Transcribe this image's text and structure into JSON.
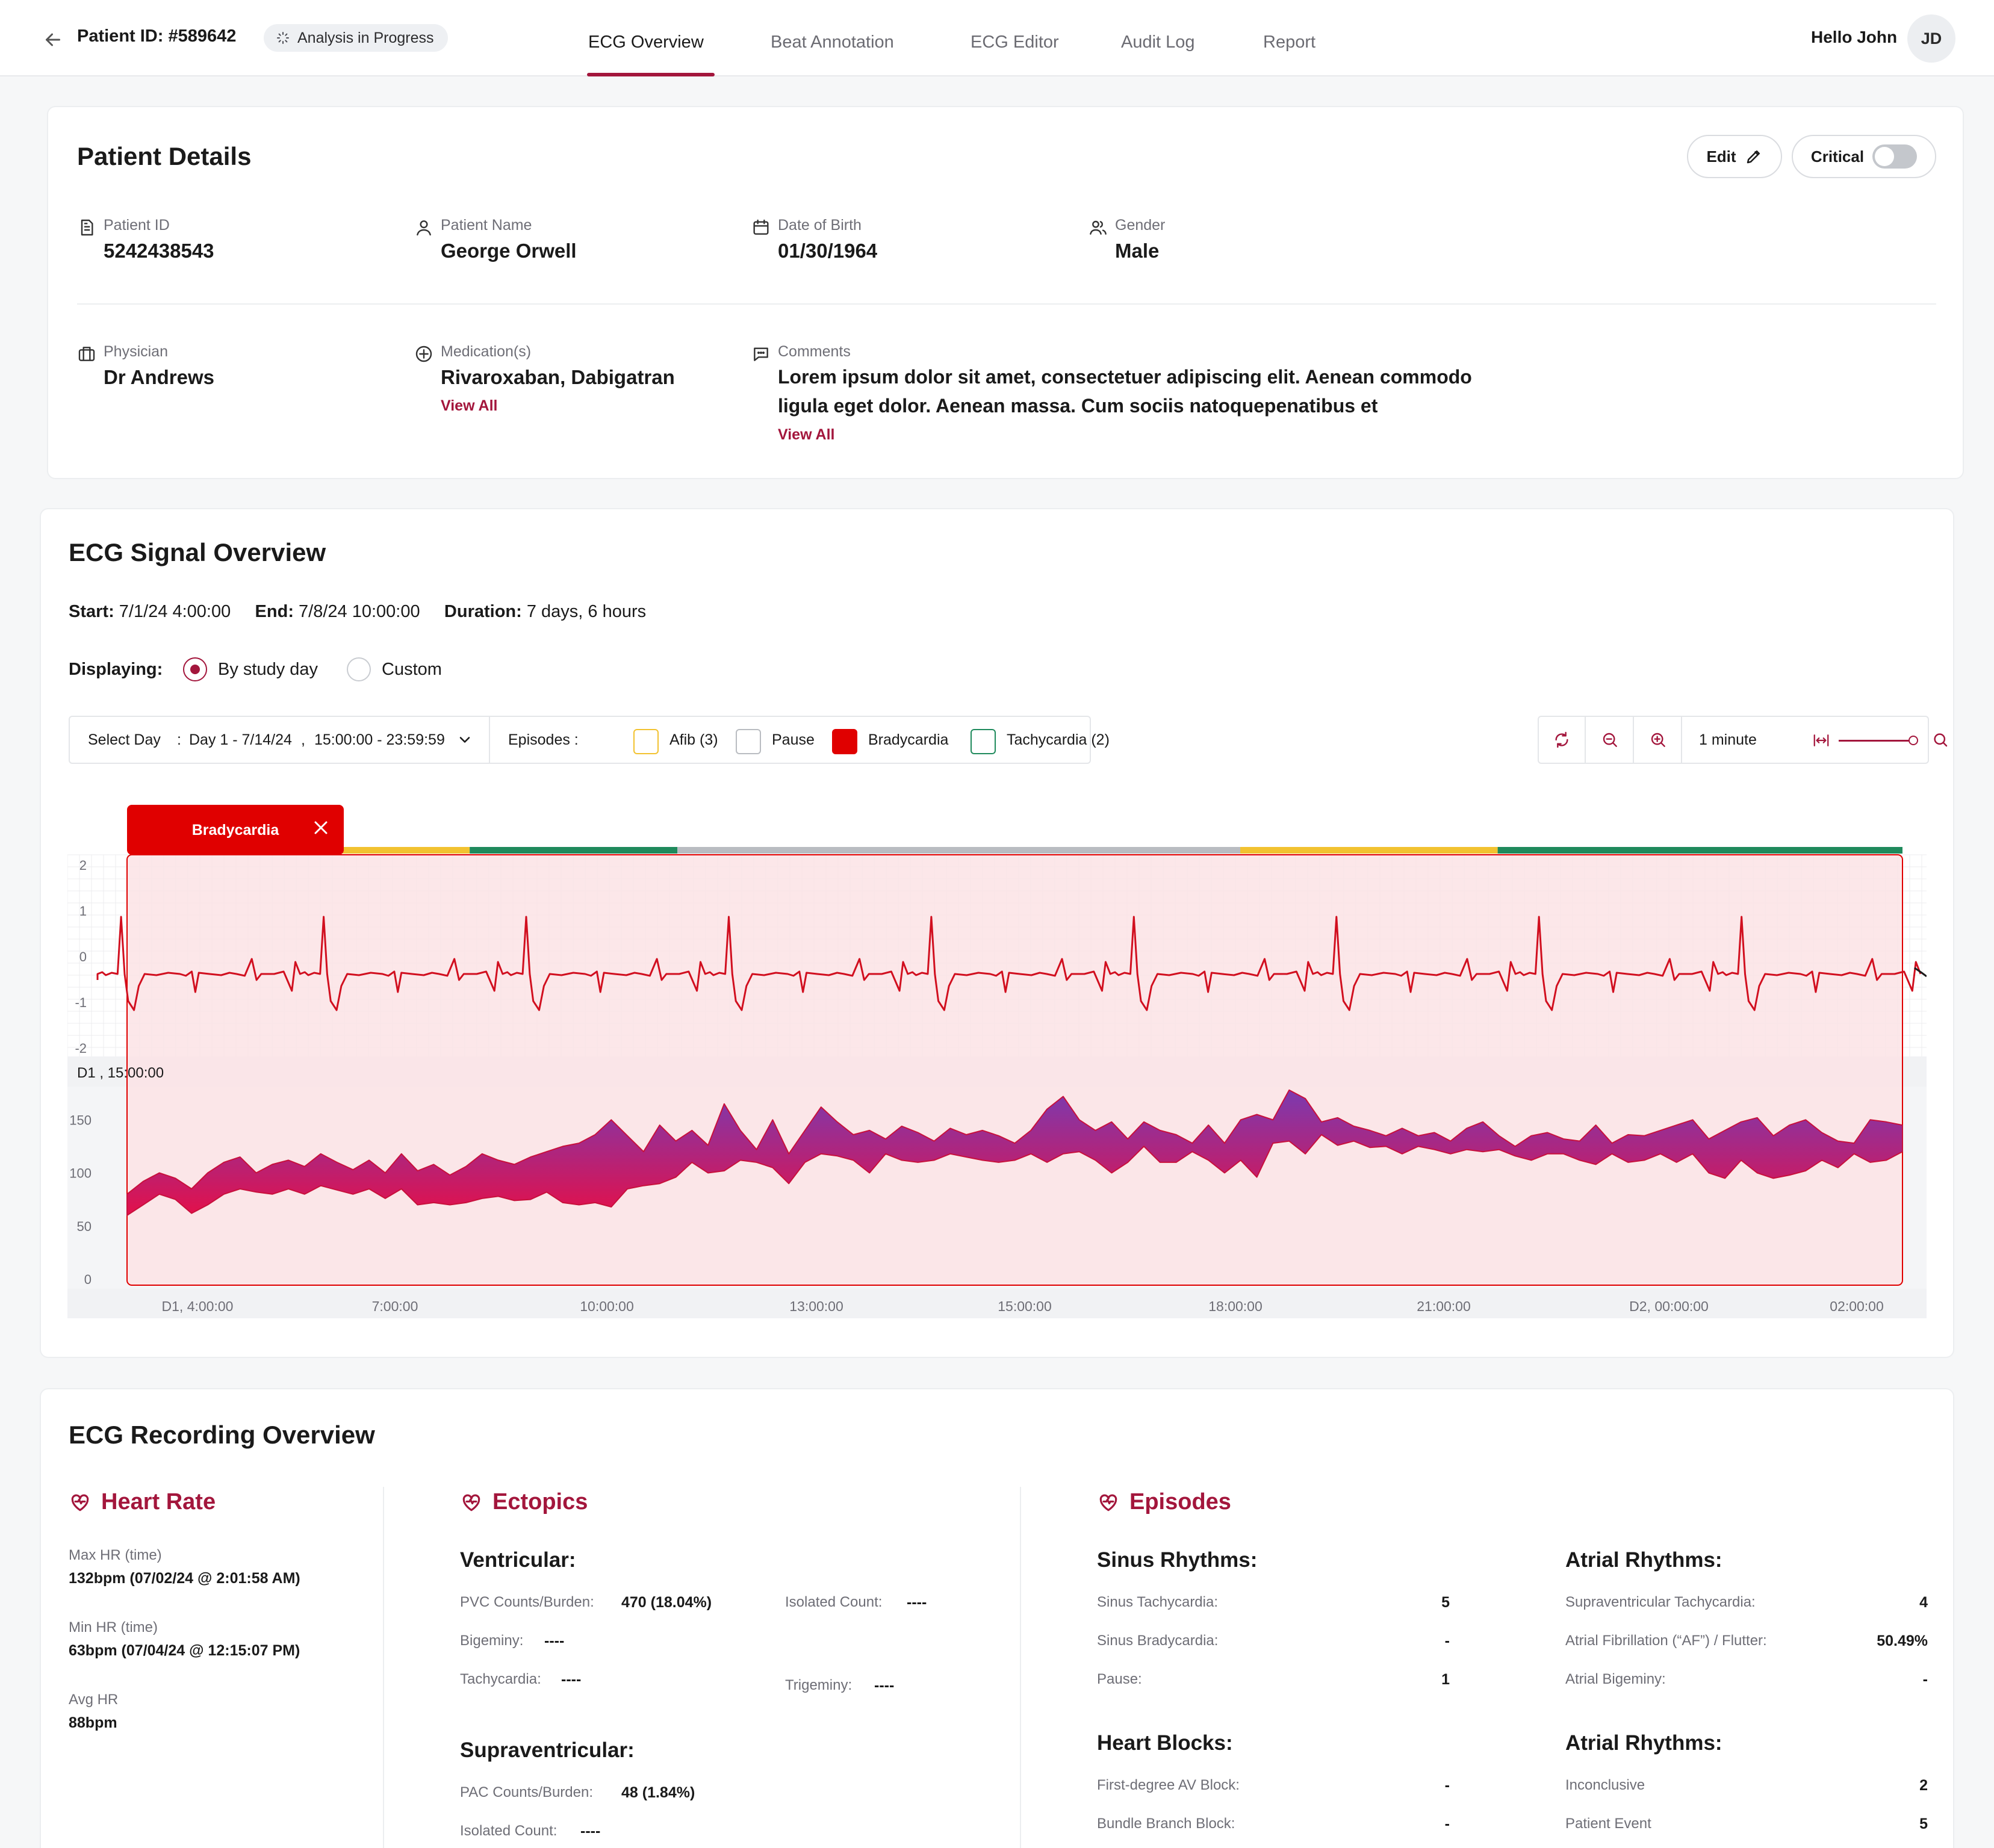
{
  "header": {
    "patient_id_title": "Patient ID: #589642",
    "status_badge": "Analysis in Progress",
    "tabs": [
      {
        "label": "ECG Overview",
        "active": true
      },
      {
        "label": "Beat Annotation",
        "active": false
      },
      {
        "label": "ECG Editor",
        "active": false
      },
      {
        "label": "Audit Log",
        "active": false
      },
      {
        "label": "Report",
        "active": false
      }
    ],
    "greeting": "Hello John",
    "avatar_initials": "JD"
  },
  "patient_details": {
    "title": "Patient Details",
    "edit_label": "Edit",
    "critical_label": "Critical",
    "critical_on": false,
    "fields": {
      "patient_id": {
        "label": "Patient ID",
        "value": "5242438543",
        "icon": "document-icon"
      },
      "patient_name": {
        "label": "Patient Name",
        "value": "George Orwell",
        "icon": "user-icon"
      },
      "dob": {
        "label": "Date of Birth",
        "value": "01/30/1964",
        "icon": "calendar-icon"
      },
      "gender": {
        "label": "Gender",
        "value": "Male",
        "icon": "users-icon"
      },
      "physician": {
        "label": "Physician",
        "value": "Dr Andrews",
        "icon": "briefcase-icon"
      },
      "medications": {
        "label": "Medication(s)",
        "value": "Rivaroxaban, Dabigatran",
        "link": "View All",
        "icon": "medical-icon"
      },
      "comments": {
        "label": "Comments",
        "line1": "Lorem ipsum dolor sit amet, consectetuer adipiscing elit. Aenean commodo",
        "line2": "ligula eget dolor. Aenean massa. Cum sociis natoquepenatibus et",
        "link": "View All",
        "icon": "comment-icon"
      }
    }
  },
  "signal_overview": {
    "title": "ECG Signal Overview",
    "start_label": "Start:",
    "start_value": "7/1/24 4:00:00",
    "end_label": "End:",
    "end_value": "7/8/24 10:00:00",
    "duration_label": "Duration:",
    "duration_value": "7 days, 6 hours",
    "displaying_label": "Displaying:",
    "display_options": [
      {
        "label": "By study day",
        "selected": true
      },
      {
        "label": "Custom",
        "selected": false
      }
    ],
    "select_day_label": "Select Day",
    "select_day_colon": ":",
    "day_value": "Day 1 - 7/14/24",
    "comma": ",",
    "time_range": "15:00:00 - 23:59:59",
    "episodes_label": "Episodes :",
    "episodes": [
      {
        "label": "Afib (3)",
        "color": "#f2c230",
        "filled": false
      },
      {
        "label": "Pause",
        "color": "#b9bcc1",
        "filled": false
      },
      {
        "label": "Bradycardia",
        "color": "#e00000",
        "filled": true
      },
      {
        "label": "Tachycardia (2)",
        "color": "#1f8a5c",
        "filled": false
      }
    ],
    "zoom_window_label": "1 minute",
    "colors": {
      "accent": "#a3163c",
      "ecg_trace": "#d10f1f",
      "highlight_fill": "#fbe3e5",
      "afib": "#f2c230",
      "pause": "#b9bcc1",
      "tachy": "#1f8a5c",
      "brady": "#e00000"
    }
  },
  "chart_data": [
    {
      "type": "line",
      "series": [
        {
          "name": "",
          "values": []
        }
      ],
      "ylim": [
        -2,
        2
      ],
      "yticks": [
        "2",
        "1",
        "0",
        "-1",
        "-2"
      ],
      "strip_label": "D1 , 15:00:00",
      "active_episode": "Bradycardia",
      "episode_bar": [
        {
          "episode": "Bradycardia",
          "from": 0.0,
          "to": 0.12
        },
        {
          "episode": "Afib",
          "from": 0.12,
          "to": 0.193
        },
        {
          "episode": "Tachycardia",
          "from": 0.193,
          "to": 0.31
        },
        {
          "episode": "Pause",
          "from": 0.31,
          "to": 0.627
        },
        {
          "episode": "Afib",
          "from": 0.627,
          "to": 0.772
        },
        {
          "episode": "Tachycardia",
          "from": 0.772,
          "to": 1.0
        }
      ],
      "beats": 9
    },
    {
      "type": "area",
      "ylim": [
        0,
        170
      ],
      "yticks": [
        "150",
        "100",
        "50",
        "0"
      ],
      "xticks": [
        "D1, 4:00:00",
        "7:00:00",
        "10:00:00",
        "13:00:00",
        "15:00:00",
        "18:00:00",
        "21:00:00",
        "D2, 00:00:00",
        "02:00:00"
      ],
      "series": [
        {
          "name": "",
          "values": [
            [
              80,
              60
            ],
            [
              92,
              70
            ],
            [
              100,
              80
            ],
            [
              95,
              75
            ],
            [
              85,
              62
            ],
            [
              100,
              70
            ],
            [
              110,
              80
            ],
            [
              115,
              85
            ],
            [
              100,
              82
            ],
            [
              108,
              80
            ],
            [
              112,
              85
            ],
            [
              106,
              80
            ],
            [
              118,
              88
            ],
            [
              110,
              84
            ],
            [
              103,
              80
            ],
            [
              112,
              85
            ],
            [
              100,
              76
            ],
            [
              118,
              85
            ],
            [
              102,
              70
            ],
            [
              108,
              72
            ],
            [
              98,
              70
            ],
            [
              106,
              72
            ],
            [
              118,
              76
            ],
            [
              112,
              78
            ],
            [
              108,
              74
            ],
            [
              115,
              75
            ],
            [
              120,
              82
            ],
            [
              125,
              72
            ],
            [
              128,
              70
            ],
            [
              136,
              72
            ],
            [
              150,
              68
            ],
            [
              135,
              85
            ],
            [
              120,
              88
            ],
            [
              145,
              90
            ],
            [
              130,
              96
            ],
            [
              140,
              110
            ],
            [
              126,
              100
            ],
            [
              165,
              102
            ],
            [
              140,
              112
            ],
            [
              122,
              110
            ],
            [
              150,
              105
            ],
            [
              118,
              90
            ],
            [
              140,
              110
            ],
            [
              162,
              118
            ],
            [
              148,
              116
            ],
            [
              136,
              112
            ],
            [
              140,
              100
            ],
            [
              132,
              118
            ],
            [
              144,
              112
            ],
            [
              138,
              110
            ],
            [
              130,
              112
            ],
            [
              142,
              118
            ],
            [
              136,
              115
            ],
            [
              140,
              112
            ],
            [
              135,
              110
            ],
            [
              128,
              112
            ],
            [
              140,
              118
            ],
            [
              160,
              110
            ],
            [
              172,
              118
            ],
            [
              150,
              120
            ],
            [
              140,
              112
            ],
            [
              148,
              100
            ],
            [
              132,
              110
            ],
            [
              148,
              125
            ],
            [
              140,
              110
            ],
            [
              136,
              110
            ],
            [
              128,
              120
            ],
            [
              145,
              112
            ],
            [
              128,
              100
            ],
            [
              150,
              112
            ],
            [
              155,
              96
            ],
            [
              150,
              128
            ],
            [
              178,
              130
            ],
            [
              170,
              118
            ],
            [
              148,
              136
            ],
            [
              152,
              126
            ],
            [
              144,
              130
            ],
            [
              140,
              124
            ],
            [
              135,
              125
            ],
            [
              142,
              118
            ],
            [
              135,
              125
            ],
            [
              138,
              122
            ],
            [
              130,
              118
            ],
            [
              142,
              122
            ],
            [
              148,
              120
            ],
            [
              135,
              122
            ],
            [
              125,
              116
            ],
            [
              135,
              112
            ],
            [
              138,
              118
            ],
            [
              132,
              118
            ],
            [
              130,
              112
            ],
            [
              145,
              108
            ],
            [
              128,
              118
            ],
            [
              136,
              110
            ],
            [
              135,
              112
            ],
            [
              140,
              118
            ],
            [
              145,
              110
            ],
            [
              150,
              118
            ],
            [
              132,
              100
            ],
            [
              140,
              95
            ],
            [
              148,
              112
            ],
            [
              152,
              100
            ],
            [
              135,
              95
            ],
            [
              145,
              98
            ],
            [
              150,
              102
            ],
            [
              138,
              112
            ],
            [
              130,
              105
            ],
            [
              128,
              118
            ],
            [
              150,
              110
            ],
            [
              148,
              112
            ],
            [
              145,
              120
            ]
          ]
        }
      ]
    }
  ],
  "recording_overview": {
    "title": "ECG Recording Overview",
    "heart_rate": {
      "title": "Heart Rate",
      "items": [
        {
          "label": "Max HR (time)",
          "value": "132bpm (07/02/24 @ 2:01:58 AM)"
        },
        {
          "label": "Min HR (time)",
          "value": "63bpm (07/04/24 @ 12:15:07 PM)"
        },
        {
          "label": "Avg HR",
          "value": "88bpm"
        }
      ]
    },
    "ectopics": {
      "title": "Ectopics",
      "ventricular_title": "Ventricular:",
      "pvc_label": "PVC Counts/Burden:",
      "pvc_value": "470 (18.04%)",
      "isolated_label": "Isolated Count:",
      "isolated_value": "----",
      "bigeminy_label": "Bigeminy:",
      "bigeminy_value": "----",
      "tachycardia_label": "Tachycardia:",
      "tachycardia_value": "----",
      "trigeminy_label": "Trigeminy:",
      "trigeminy_value": "----",
      "supraventricular_title": "Supraventricular:",
      "pac_label": "PAC Counts/Burden:",
      "pac_value": "48 (1.84%)",
      "sv_isolated_label": "Isolated Count:",
      "sv_isolated_value": "----"
    },
    "episodes": {
      "title": "Episodes",
      "sinus_title": "Sinus Rhythms:",
      "sinus": [
        {
          "label": "Sinus Tachycardia:",
          "value": "5"
        },
        {
          "label": "Sinus Bradycardia:",
          "value": "-"
        },
        {
          "label": "Pause:",
          "value": "1"
        }
      ],
      "atrial_title": "Atrial Rhythms:",
      "atrial": [
        {
          "label": "Supraventricular Tachycardia:",
          "value": "4"
        },
        {
          "label": "Atrial Fibrillation (“AF”) / Flutter:",
          "value": "50.49%"
        },
        {
          "label": "Atrial Bigeminy:",
          "value": "-"
        }
      ],
      "blocks_title": "Heart Blocks:",
      "blocks": [
        {
          "label": "First-degree AV Block:",
          "value": "-"
        },
        {
          "label": "Bundle Branch Block:",
          "value": "-"
        }
      ],
      "atrial2_title": "Atrial Rhythms:",
      "atrial2": [
        {
          "label": "Inconclusive",
          "value": "2"
        },
        {
          "label": "Patient Event",
          "value": "5"
        }
      ]
    }
  }
}
